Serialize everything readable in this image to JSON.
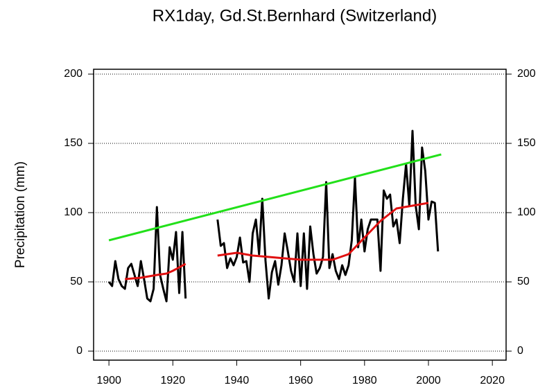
{
  "chart_data": {
    "type": "line",
    "title": "RX1day, Gd.St.Bernhard (Switzerland)",
    "y_label": "Precipitation (mm)",
    "xlim": [
      1895.2,
      2024.3
    ],
    "ylim": [
      -6.5,
      203.5
    ],
    "xticks": [
      1900,
      1920,
      1940,
      1960,
      1980,
      2000,
      2020
    ],
    "yticks": [
      0,
      50,
      100,
      150,
      200
    ],
    "grid": true,
    "right_axis": true,
    "series": [
      {
        "color": "#000000",
        "width": 3,
        "x": [
          1900,
          1901,
          1902,
          1903,
          1904,
          1905,
          1906,
          1907,
          1908,
          1909,
          1910,
          1911,
          1912,
          1913,
          1914,
          1915,
          1916,
          1917,
          1918,
          1919,
          1920,
          1921,
          1922,
          1923,
          1924,
          1925,
          1934,
          1935,
          1936,
          1937,
          1938,
          1939,
          1940,
          1941,
          1942,
          1943,
          1944,
          1945,
          1946,
          1947,
          1948,
          1949,
          1950,
          1951,
          1952,
          1953,
          1954,
          1955,
          1956,
          1957,
          1958,
          1959,
          1960,
          1961,
          1962,
          1963,
          1964,
          1965,
          1966,
          1967,
          1968,
          1969,
          1970,
          1971,
          1972,
          1973,
          1974,
          1975,
          1976,
          1977,
          1978,
          1979,
          1980,
          1981,
          1982,
          1983,
          1984,
          1985,
          1986,
          1987,
          1988,
          1989,
          1990,
          1991,
          1992,
          1993,
          1994,
          1995,
          1996,
          1997,
          1998,
          1999,
          2000,
          2001,
          2002,
          2003
        ],
        "values": [
          50,
          47,
          65,
          52,
          47,
          45,
          60,
          63,
          55,
          47,
          65,
          52,
          38,
          36,
          45,
          104,
          55,
          45,
          36,
          75,
          66,
          86,
          42,
          86,
          38,
          null,
          95,
          76,
          78,
          60,
          67,
          62,
          68,
          82,
          64,
          65,
          50,
          85,
          95,
          70,
          110,
          65,
          38,
          57,
          65,
          48,
          62,
          85,
          72,
          58,
          50,
          85,
          47,
          85,
          45,
          90,
          70,
          56,
          60,
          68,
          122,
          60,
          70,
          58,
          52,
          62,
          55,
          62,
          80,
          125,
          75,
          95,
          72,
          88,
          95,
          95,
          95,
          58,
          116,
          110,
          113,
          90,
          95,
          78,
          110,
          135,
          105,
          159,
          105,
          88,
          147,
          130,
          95,
          108,
          107,
          72
        ]
      },
      {
        "color": "#e01010",
        "width": 3,
        "x": [
          1905,
          1910,
          1915,
          1918,
          1920,
          1924,
          1925,
          1934,
          1940,
          1945,
          1950,
          1955,
          1960,
          1965,
          1970,
          1975,
          1980,
          1985,
          1990,
          1995,
          2000
        ],
        "values": [
          52,
          53,
          55,
          56,
          58,
          63,
          null,
          69,
          71,
          69,
          68,
          67,
          66,
          66,
          66,
          70,
          82,
          94,
          103,
          105,
          107
        ]
      },
      {
        "color": "#22e01a",
        "width": 3,
        "x": [
          1900,
          2004
        ],
        "values": [
          80,
          142
        ]
      }
    ]
  }
}
